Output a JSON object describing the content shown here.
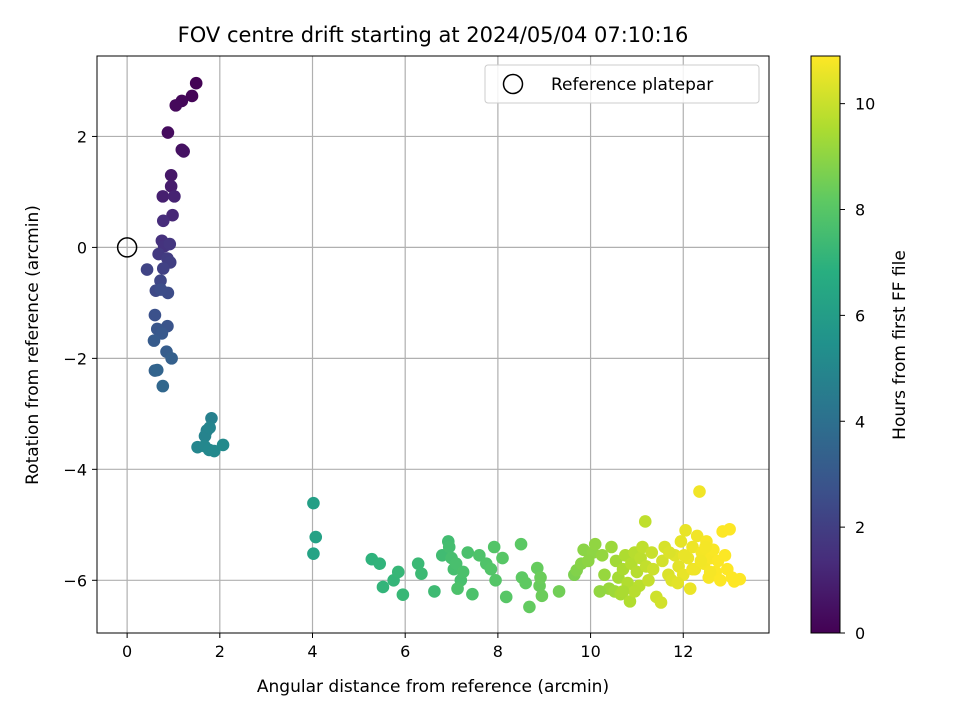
{
  "chart_data": {
    "type": "scatter",
    "title": "FOV centre drift starting at 2024/05/04 07:10:16",
    "xlabel": "Angular distance from reference (arcmin)",
    "ylabel": "Rotation from reference (arcmin)",
    "xlim": [
      -0.65,
      13.85
    ],
    "ylim": [
      -6.95,
      3.45
    ],
    "xticks": [
      0,
      2,
      4,
      6,
      8,
      10,
      12
    ],
    "yticks": [
      -6,
      -4,
      -2,
      0,
      2
    ],
    "grid": true,
    "legend": {
      "placement": "top-right",
      "entries": [
        "Reference platepar"
      ]
    },
    "reference_point": {
      "x": 0,
      "y": 0,
      "label": "Reference platepar"
    },
    "colorbar": {
      "label": "Hours from first FF file",
      "range": [
        0,
        10.9
      ],
      "ticks": [
        0,
        2,
        4,
        6,
        8,
        10
      ],
      "colormap": "viridis"
    },
    "points": [
      [
        1.49,
        2.96,
        0.05
      ],
      [
        1.4,
        2.73,
        0.12
      ],
      [
        1.18,
        2.64,
        0.18
      ],
      [
        1.05,
        2.56,
        0.25
      ],
      [
        0.88,
        2.07,
        0.35
      ],
      [
        1.18,
        1.76,
        0.45
      ],
      [
        1.22,
        1.73,
        0.52
      ],
      [
        0.95,
        1.3,
        0.7
      ],
      [
        0.95,
        1.1,
        0.85
      ],
      [
        0.77,
        0.92,
        0.95
      ],
      [
        1.02,
        0.92,
        1.05
      ],
      [
        0.98,
        0.58,
        1.2
      ],
      [
        0.78,
        0.48,
        1.35
      ],
      [
        0.75,
        0.12,
        1.5
      ],
      [
        0.8,
        0.02,
        1.6
      ],
      [
        0.92,
        0.06,
        1.7
      ],
      [
        0.68,
        -0.12,
        1.8
      ],
      [
        0.87,
        -0.2,
        1.9
      ],
      [
        0.93,
        -0.27,
        2.0
      ],
      [
        0.78,
        -0.38,
        2.1
      ],
      [
        0.43,
        -0.4,
        2.2
      ],
      [
        0.72,
        -0.6,
        2.3
      ],
      [
        0.62,
        -0.78,
        2.4
      ],
      [
        0.88,
        -0.82,
        2.5
      ],
      [
        0.73,
        -0.76,
        2.55
      ],
      [
        0.6,
        -1.22,
        2.7
      ],
      [
        0.87,
        -1.42,
        2.8
      ],
      [
        0.65,
        -1.47,
        2.9
      ],
      [
        0.75,
        -1.55,
        3.0
      ],
      [
        0.58,
        -1.68,
        3.1
      ],
      [
        0.85,
        -1.88,
        3.2
      ],
      [
        0.96,
        -2.0,
        3.3
      ],
      [
        0.6,
        -2.22,
        3.4
      ],
      [
        0.65,
        -2.21,
        3.5
      ],
      [
        0.77,
        -2.5,
        3.6
      ],
      [
        1.82,
        -3.08,
        4.7
      ],
      [
        1.72,
        -3.3,
        4.8
      ],
      [
        1.68,
        -3.4,
        4.85
      ],
      [
        1.78,
        -3.25,
        4.9
      ],
      [
        1.52,
        -3.6,
        4.95
      ],
      [
        1.67,
        -3.58,
        5.0
      ],
      [
        1.77,
        -3.65,
        5.05
      ],
      [
        1.88,
        -3.67,
        5.1
      ],
      [
        2.07,
        -3.56,
        5.15
      ],
      [
        4.02,
        -4.61,
        6.1
      ],
      [
        4.07,
        -5.22,
        6.2
      ],
      [
        4.02,
        -5.52,
        6.3
      ],
      [
        5.28,
        -5.62,
        7.0
      ],
      [
        5.45,
        -5.7,
        7.05
      ],
      [
        5.52,
        -6.12,
        7.1
      ],
      [
        5.75,
        -6.0,
        7.15
      ],
      [
        5.85,
        -5.85,
        7.2
      ],
      [
        5.95,
        -6.26,
        7.25
      ],
      [
        6.28,
        -5.7,
        7.3
      ],
      [
        6.35,
        -5.88,
        7.35
      ],
      [
        6.63,
        -6.2,
        7.4
      ],
      [
        6.8,
        -5.55,
        7.45
      ],
      [
        6.93,
        -5.3,
        7.5
      ],
      [
        6.95,
        -5.4,
        7.55
      ],
      [
        7.0,
        -5.6,
        7.6
      ],
      [
        7.05,
        -5.8,
        7.6
      ],
      [
        7.1,
        -5.7,
        7.65
      ],
      [
        7.2,
        -6.0,
        7.65
      ],
      [
        7.25,
        -5.85,
        7.7
      ],
      [
        7.35,
        -5.5,
        7.7
      ],
      [
        7.45,
        -6.25,
        7.75
      ],
      [
        7.13,
        -6.15,
        7.75
      ],
      [
        7.6,
        -5.55,
        7.8
      ],
      [
        7.75,
        -5.7,
        7.85
      ],
      [
        7.85,
        -5.8,
        7.9
      ],
      [
        7.92,
        -5.4,
        7.9
      ],
      [
        7.95,
        -6.0,
        7.95
      ],
      [
        8.1,
        -5.6,
        8.0
      ],
      [
        8.18,
        -6.3,
        8.0
      ],
      [
        8.5,
        -5.35,
        8.1
      ],
      [
        8.52,
        -5.95,
        8.15
      ],
      [
        8.6,
        -6.05,
        8.2
      ],
      [
        8.68,
        -6.48,
        8.25
      ],
      [
        8.85,
        -5.78,
        8.3
      ],
      [
        8.9,
        -6.1,
        8.35
      ],
      [
        8.95,
        -6.28,
        8.4
      ],
      [
        8.92,
        -5.95,
        8.4
      ],
      [
        9.32,
        -6.2,
        8.5
      ],
      [
        9.65,
        -5.9,
        8.7
      ],
      [
        9.7,
        -5.82,
        8.8
      ],
      [
        9.8,
        -5.7,
        8.9
      ],
      [
        9.85,
        -5.45,
        8.95
      ],
      [
        10.05,
        -5.5,
        9.0
      ],
      [
        10.1,
        -5.35,
        9.05
      ],
      [
        10.25,
        -5.55,
        9.1
      ],
      [
        10.3,
        -5.9,
        9.15
      ],
      [
        10.4,
        -6.15,
        9.2
      ],
      [
        10.45,
        -5.4,
        9.25
      ],
      [
        10.52,
        -6.2,
        9.3
      ],
      [
        10.55,
        -5.65,
        9.35
      ],
      [
        10.6,
        -5.95,
        9.4
      ],
      [
        10.65,
        -6.25,
        9.45
      ],
      [
        10.7,
        -5.8,
        9.5
      ],
      [
        10.75,
        -5.55,
        9.55
      ],
      [
        10.8,
        -6.05,
        9.6
      ],
      [
        10.85,
        -6.38,
        9.6
      ],
      [
        10.88,
        -5.7,
        9.65
      ],
      [
        10.95,
        -5.5,
        9.7
      ],
      [
        11.0,
        -5.85,
        9.7
      ],
      [
        11.05,
        -6.1,
        9.75
      ],
      [
        11.08,
        -5.6,
        9.8
      ],
      [
        11.12,
        -5.4,
        9.85
      ],
      [
        11.18,
        -4.94,
        9.85
      ],
      [
        11.2,
        -5.75,
        9.9
      ],
      [
        11.25,
        -6.0,
        9.95
      ],
      [
        11.32,
        -5.5,
        10.0
      ],
      [
        11.35,
        -5.8,
        10.05
      ],
      [
        11.42,
        -6.3,
        10.1
      ],
      [
        11.52,
        -6.4,
        10.15
      ],
      [
        11.55,
        -5.65,
        10.2
      ],
      [
        11.6,
        -5.4,
        10.25
      ],
      [
        11.68,
        -5.9,
        10.3
      ],
      [
        11.75,
        -6.0,
        10.35
      ],
      [
        11.82,
        -5.55,
        10.4
      ],
      [
        11.9,
        -5.75,
        10.45
      ],
      [
        11.95,
        -5.3,
        10.5
      ],
      [
        12.0,
        -5.9,
        10.55
      ],
      [
        12.05,
        -5.1,
        10.55
      ],
      [
        12.1,
        -5.6,
        10.6
      ],
      [
        12.15,
        -6.15,
        10.6
      ],
      [
        12.2,
        -5.4,
        10.65
      ],
      [
        12.25,
        -5.8,
        10.65
      ],
      [
        12.3,
        -5.2,
        10.7
      ],
      [
        12.35,
        -4.4,
        10.7
      ],
      [
        12.4,
        -5.5,
        10.75
      ],
      [
        12.45,
        -5.7,
        10.75
      ],
      [
        12.5,
        -5.3,
        10.8
      ],
      [
        12.55,
        -5.95,
        10.8
      ],
      [
        12.6,
        -5.6,
        10.82
      ],
      [
        12.65,
        -5.45,
        10.84
      ],
      [
        12.7,
        -5.85,
        10.86
      ],
      [
        12.75,
        -5.65,
        10.87
      ],
      [
        12.8,
        -6.0,
        10.88
      ],
      [
        12.85,
        -5.12,
        10.89
      ],
      [
        12.9,
        -5.55,
        10.89
      ],
      [
        12.95,
        -5.8,
        10.9
      ],
      [
        13.0,
        -5.08,
        10.9
      ],
      [
        13.05,
        -5.95,
        10.9
      ],
      [
        13.1,
        -6.02,
        10.9
      ],
      [
        13.22,
        -5.98,
        10.9
      ],
      [
        12.2,
        -5.8,
        10.68
      ],
      [
        12.38,
        -5.65,
        10.72
      ],
      [
        12.58,
        -5.85,
        10.78
      ],
      [
        11.7,
        -5.5,
        10.32
      ],
      [
        10.95,
        -6.2,
        9.72
      ],
      [
        10.2,
        -6.2,
        9.08
      ],
      [
        9.95,
        -5.65,
        8.98
      ],
      [
        12.02,
        -5.55,
        10.56
      ],
      [
        12.48,
        -5.4,
        10.76
      ],
      [
        11.88,
        -6.05,
        10.44
      ],
      [
        10.7,
        -6.2,
        9.5
      ]
    ]
  }
}
